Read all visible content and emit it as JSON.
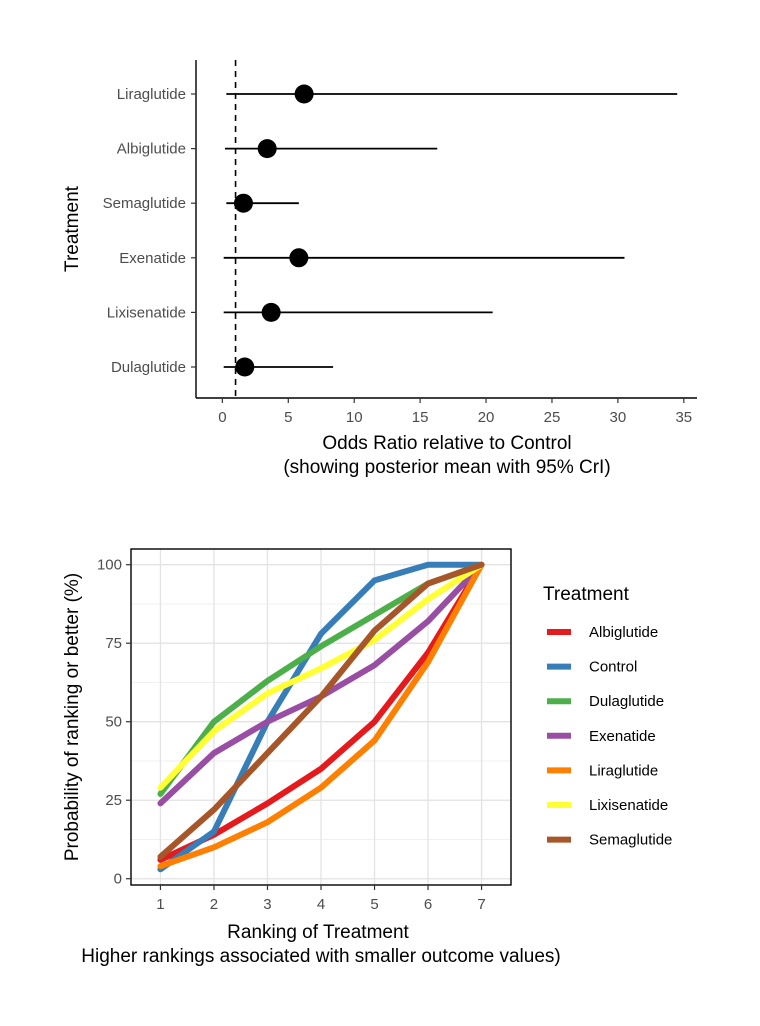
{
  "chart_data": [
    {
      "type": "forest",
      "ylabel": "Treatment",
      "xlabel": "Odds Ratio relative to Control",
      "xlabel_sub": "(showing posterior mean with 95% CrI)",
      "xlim": [
        -2,
        36
      ],
      "xticks": [
        0,
        5,
        10,
        15,
        20,
        25,
        30,
        35
      ],
      "reference_line": 1,
      "categories": [
        "Liraglutide",
        "Albiglutide",
        "Semaglutide",
        "Exenatide",
        "Lixisenatide",
        "Dulaglutide"
      ],
      "mean": [
        6.2,
        3.4,
        1.6,
        5.8,
        3.7,
        1.7
      ],
      "lower": [
        0.3,
        0.2,
        0.3,
        0.1,
        0.1,
        0.1
      ],
      "upper": [
        34.5,
        16.3,
        5.8,
        30.5,
        20.5,
        8.4
      ]
    },
    {
      "type": "line",
      "xlabel": "Ranking of Treatment",
      "xlabel_sub": "Higher rankings associated with smaller outcome values)",
      "ylabel": "Probability of ranking or better (%)",
      "x": [
        1,
        2,
        3,
        4,
        5,
        6,
        7
      ],
      "ylim": [
        -2,
        105
      ],
      "yticks": [
        0,
        25,
        50,
        75,
        100
      ],
      "grid": true,
      "legend_title": "Treatment",
      "legend_position": "right",
      "series": [
        {
          "name": "Albiglutide",
          "color": "#E41A1C",
          "values": [
            6,
            14,
            24,
            35,
            50,
            72,
            100
          ]
        },
        {
          "name": "Control",
          "color": "#377EB8",
          "values": [
            3,
            15,
            50,
            78,
            95,
            100,
            100
          ]
        },
        {
          "name": "Dulaglutide",
          "color": "#4DAF4A",
          "values": [
            27,
            50,
            63,
            74,
            84,
            94,
            100
          ]
        },
        {
          "name": "Exenatide",
          "color": "#984EA3",
          "values": [
            24,
            40,
            50,
            58,
            68,
            82,
            100
          ]
        },
        {
          "name": "Liraglutide",
          "color": "#FF7F00",
          "values": [
            4,
            10,
            18,
            29,
            44,
            69,
            100
          ]
        },
        {
          "name": "Lixisenatide",
          "color": "#FFFF33",
          "values": [
            29,
            47,
            59,
            67,
            76,
            89,
            100
          ]
        },
        {
          "name": "Semaglutide",
          "color": "#A65628",
          "values": [
            7,
            22,
            40,
            58,
            79,
            94,
            100
          ]
        }
      ]
    }
  ]
}
